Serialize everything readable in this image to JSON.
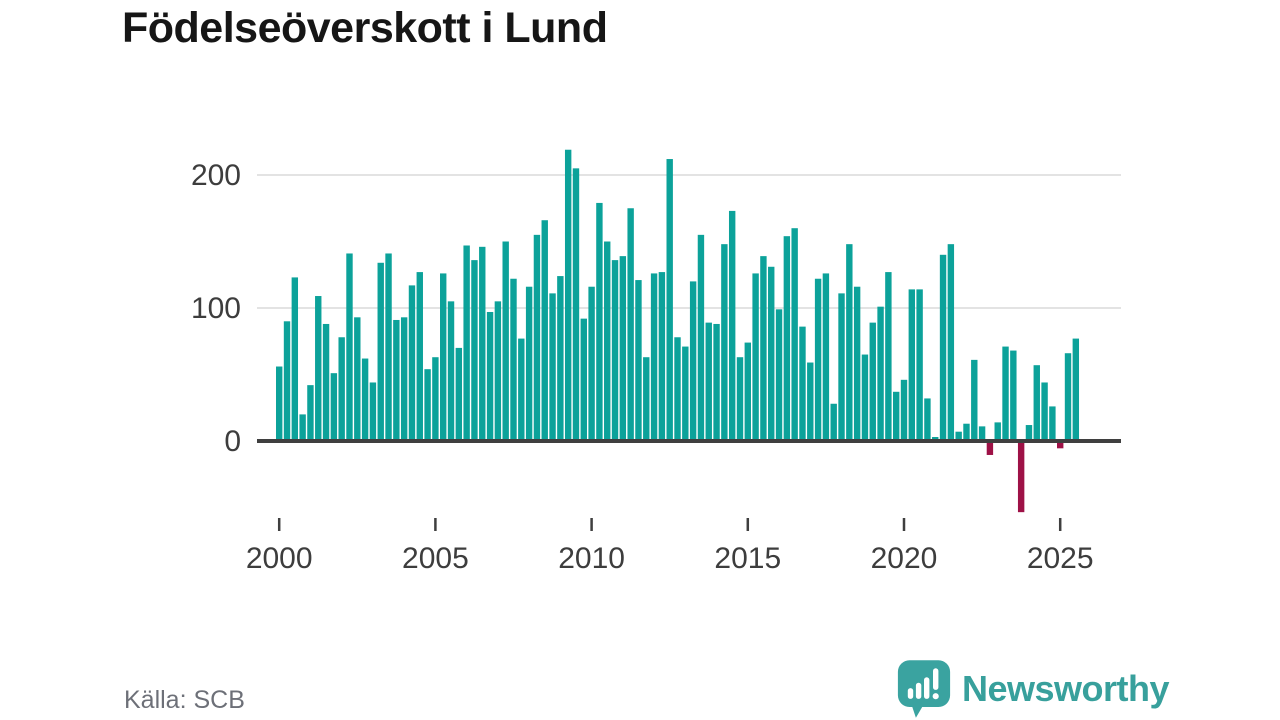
{
  "title": "Födelseöverskott i Lund",
  "source": "Källa: SCB",
  "branding": {
    "name": "Newsworthy",
    "icon": "speech-bubble-bar-chart-icon"
  },
  "colors": {
    "bar_positive": "#0ca29a",
    "bar_negative": "#9e1146",
    "axis_line": "#3f3f3f",
    "gridline": "#e3e3e3",
    "tick_label": "#3d3d3d",
    "title_text": "#161616",
    "source_text": "#6d7078",
    "brand_teal": "#38a09c"
  },
  "chart_data": {
    "type": "bar",
    "title": "Födelseöverskott i Lund",
    "x_unit": "quarter",
    "start_period": "2000-Q1",
    "end_period": "2025-Q3",
    "x_tick_labels": [
      "2000",
      "2005",
      "2010",
      "2015",
      "2020",
      "2025"
    ],
    "y_tick_labels": [
      "0",
      "100",
      "200"
    ],
    "y_ticks": [
      0,
      100,
      200
    ],
    "ylim": [
      -60,
      230
    ],
    "grid": true,
    "values": [
      56,
      90,
      123,
      20,
      42,
      109,
      88,
      51,
      78,
      141,
      93,
      62,
      44,
      134,
      141,
      91,
      93,
      117,
      127,
      54,
      63,
      126,
      105,
      70,
      147,
      136,
      146,
      97,
      105,
      150,
      122,
      77,
      116,
      155,
      166,
      111,
      124,
      219,
      205,
      92,
      116,
      179,
      150,
      136,
      139,
      175,
      121,
      63,
      126,
      127,
      212,
      78,
      71,
      120,
      155,
      89,
      88,
      148,
      173,
      63,
      74,
      126,
      139,
      131,
      99,
      154,
      160,
      86,
      59,
      122,
      126,
      28,
      111,
      148,
      116,
      65,
      89,
      101,
      127,
      37,
      46,
      114,
      114,
      32,
      3,
      140,
      148,
      7,
      13,
      61,
      11,
      -9,
      14,
      71,
      68,
      -52,
      12,
      57,
      44,
      26,
      -4,
      66,
      77
    ]
  }
}
